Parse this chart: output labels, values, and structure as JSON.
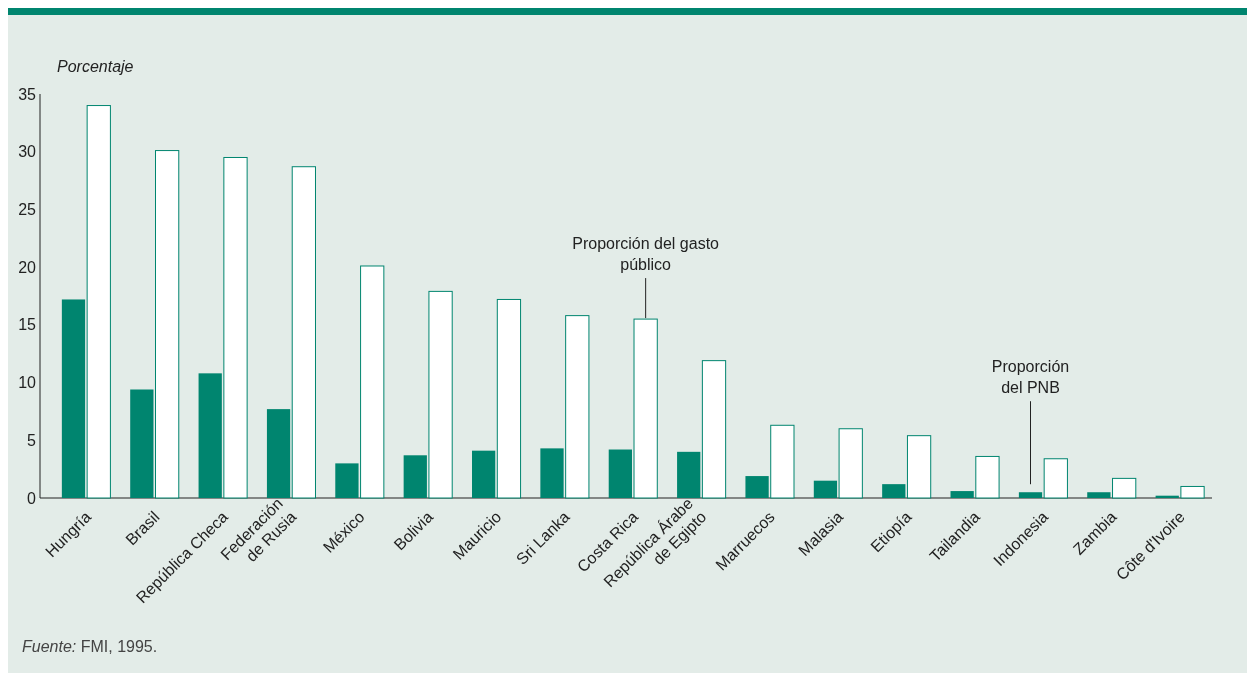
{
  "chart_data": {
    "type": "bar",
    "ylabel": "Porcentaje",
    "categories": [
      "Hungría",
      "Brasil",
      "República Checa",
      "Federación\nde Rusia",
      "México",
      "Bolivia",
      "Mauricio",
      "Sri Lanka",
      "Costa Rica",
      "República Árabe\nde Egipto",
      "Marruecos",
      "Malasia",
      "Etiopía",
      "Tailandia",
      "Indonesia",
      "Zambia",
      "Côte d'Ivoire"
    ],
    "series": [
      {
        "color": "#00856f",
        "values": [
          17.2,
          9.4,
          10.8,
          7.7,
          3.0,
          3.7,
          4.1,
          4.3,
          4.2,
          4.0,
          1.9,
          1.5,
          1.2,
          0.6,
          0.5,
          0.5,
          0.2
        ]
      },
      {
        "color": "#ffffff",
        "values": [
          34.0,
          30.1,
          29.5,
          28.7,
          20.1,
          17.9,
          17.2,
          15.8,
          15.5,
          11.9,
          6.3,
          6.0,
          5.4,
          3.6,
          3.4,
          1.7,
          1.0
        ]
      }
    ],
    "ylim": [
      0,
      35
    ],
    "yticks": [
      0,
      5,
      10,
      15,
      20,
      25,
      30,
      35
    ],
    "annotations": [
      {
        "text": "Proporción del gasto\npúblico",
        "x": "Costa Rica",
        "y": 15.5
      },
      "Proporción\ndel PNB",
      "Fuente: FMI, 1995."
    ]
  }
}
